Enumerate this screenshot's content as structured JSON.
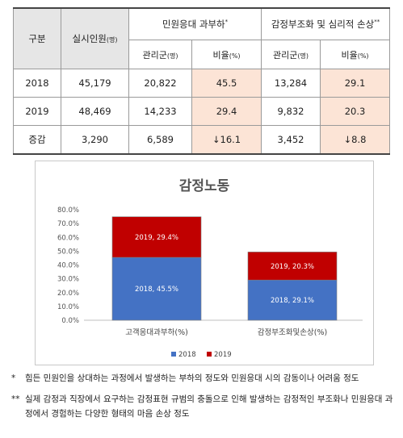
{
  "table": {
    "header_row1": {
      "category": "구분",
      "staff": "실시인원",
      "staff_unit": "(명)",
      "group1": "민원응대 과부하",
      "group1_mark": "*",
      "group2": "감정부조화 및 심리적 손상",
      "group2_mark": "**"
    },
    "header_row2": {
      "managed": "관리군",
      "managed_unit": "(명)",
      "ratio": "비율",
      "ratio_unit": "(%)"
    },
    "rows": [
      {
        "label": "2018",
        "staff": "45,179",
        "g1_managed": "20,822",
        "g1_ratio": "45.5",
        "g2_managed": "13,284",
        "g2_ratio": "29.1"
      },
      {
        "label": "2019",
        "staff": "48,469",
        "g1_managed": "14,233",
        "g1_ratio": "29.4",
        "g2_managed": "9,832",
        "g2_ratio": "20.3"
      },
      {
        "label": "증감",
        "staff": "3,290",
        "g1_managed": "6,589",
        "g1_ratio": "↓16.1",
        "g2_managed": "3,452",
        "g2_ratio": "↓8.8"
      }
    ]
  },
  "chart_data": {
    "type": "bar",
    "stacked": true,
    "title": "감정노동",
    "categories": [
      "고객응대과부하(%)",
      "감정부조화및손상(%)"
    ],
    "series": [
      {
        "name": "2018",
        "values": [
          45.5,
          29.1
        ],
        "color": "#4472c4",
        "labels": [
          "2018, 45.5%",
          "2018, 29.1%"
        ]
      },
      {
        "name": "2019",
        "values": [
          29.4,
          20.3
        ],
        "color": "#c00000",
        "labels": [
          "2019, 29.4%",
          "2019, 20.3%"
        ]
      }
    ],
    "ylim": [
      0,
      80
    ],
    "yticks": [
      "0.0%",
      "10.0%",
      "20.0%",
      "30.0%",
      "40.0%",
      "50.0%",
      "60.0%",
      "70.0%",
      "80.0%"
    ],
    "ytick_values": [
      0,
      10,
      20,
      30,
      40,
      50,
      60,
      70,
      80
    ],
    "legend": "bottom",
    "grid": false
  },
  "notes": [
    {
      "mark": "*",
      "text": "힘든 민원인을 상대하는 과정에서 발생하는 부하의 정도와 민원응대 시의 감동이나 어려움 정도"
    },
    {
      "mark": "**",
      "text": "실제 감정과 직장에서 요구하는 감정표현 규범의 충돌으로 인해 발생하는 감정적인 부조화나 민원응대 과정에서 경험하는 다양한 형태의 마음 손상 정도"
    }
  ]
}
